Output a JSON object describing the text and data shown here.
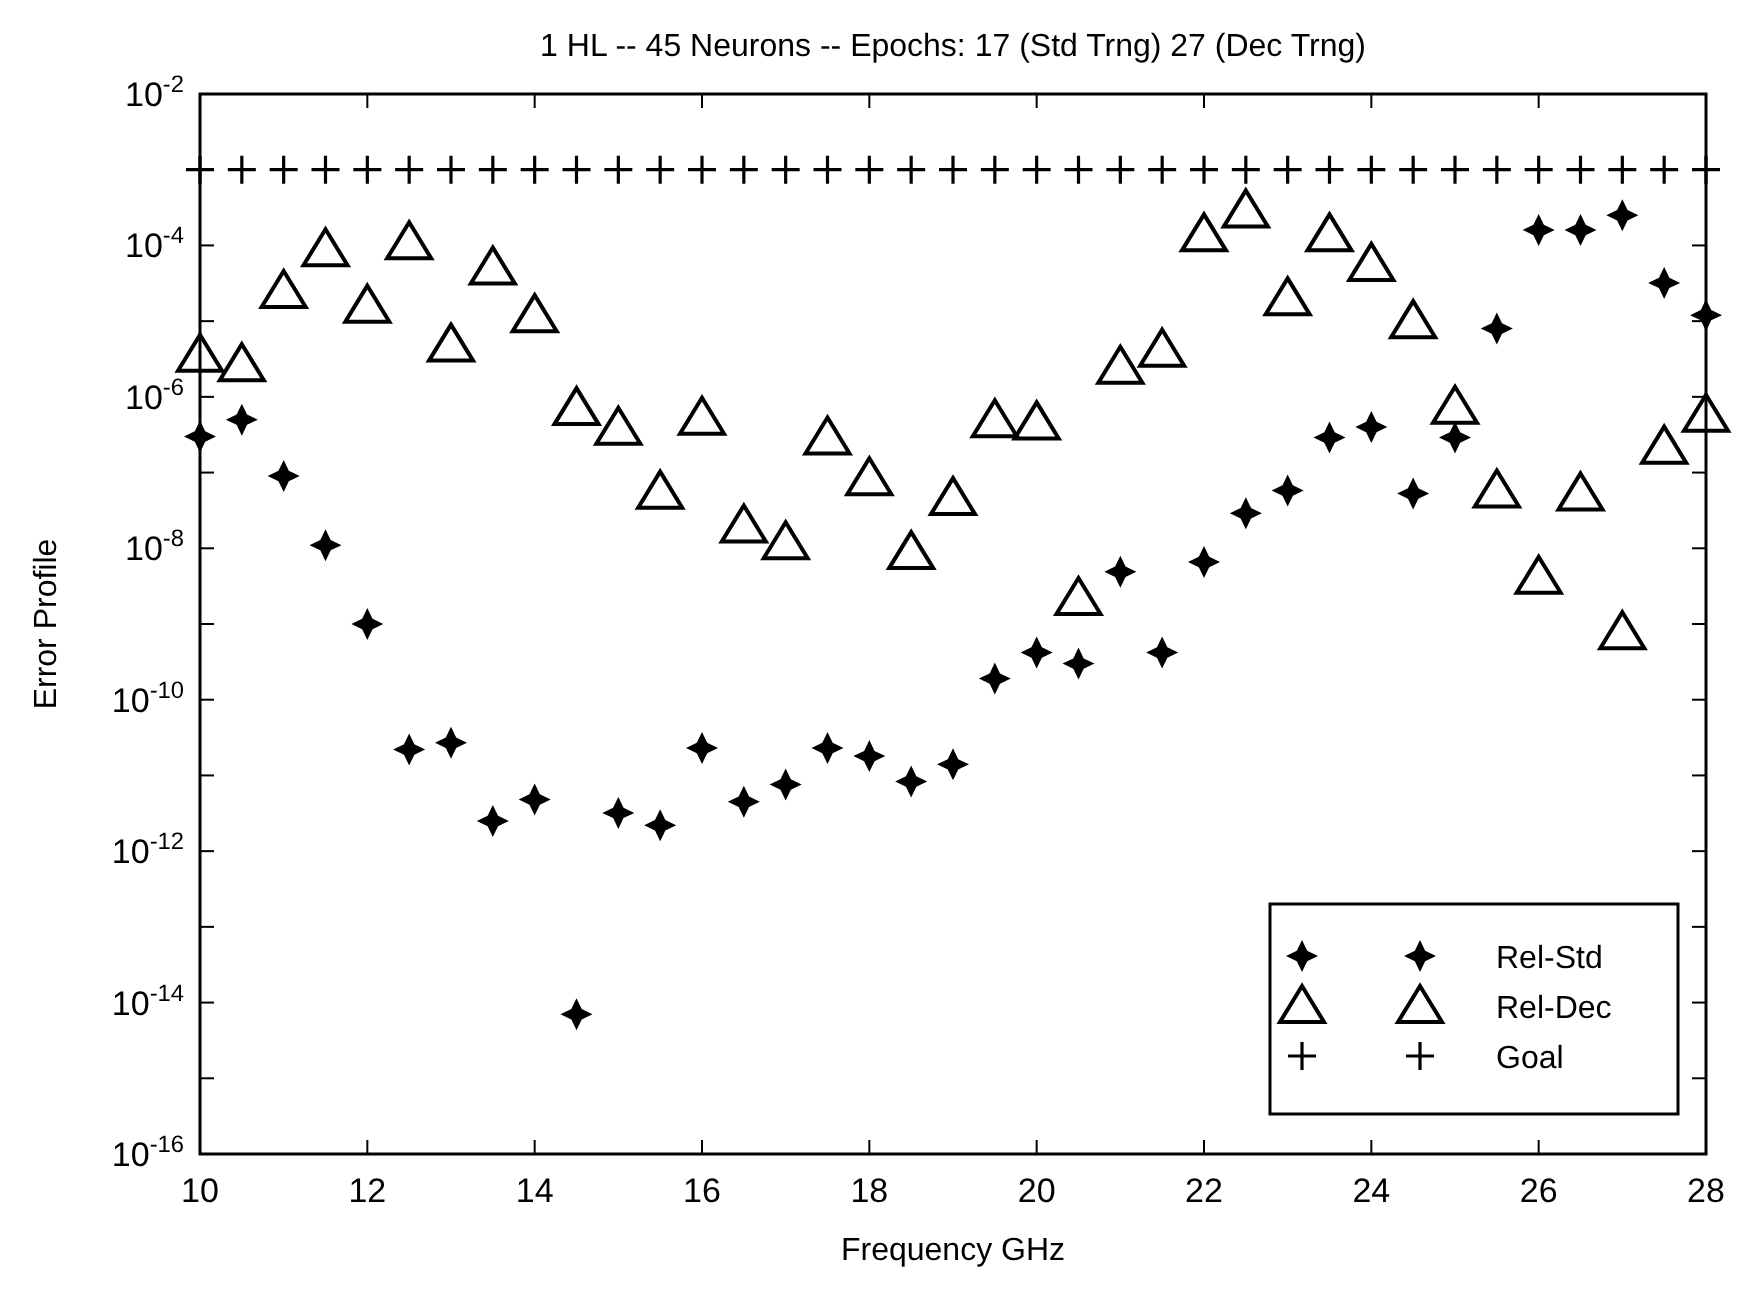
{
  "chart_data": {
    "type": "scatter",
    "title": "1 HL -- 45 Neurons -- Epochs: 17 (Std Trng)   27 (Dec Trng)",
    "xlabel": "Frequency GHz",
    "ylabel": "Error Profile",
    "x": [
      10,
      10.5,
      11,
      11.5,
      12,
      12.5,
      13,
      13.5,
      14,
      14.5,
      15,
      15.5,
      16,
      16.5,
      17,
      17.5,
      18,
      18.5,
      19,
      19.5,
      20,
      20.5,
      21,
      21.5,
      22,
      22.5,
      23,
      23.5,
      24,
      24.5,
      25,
      25.5,
      26,
      26.5,
      27,
      27.5,
      28
    ],
    "series": [
      {
        "name": "Rel-Std",
        "color": "#000000",
        "marker": "star",
        "values": [
          3e-07,
          5e-07,
          9e-08,
          1.1e-08,
          1e-09,
          2.2e-11,
          2.7e-11,
          2.5e-12,
          4.8e-12,
          7e-15,
          3.2e-12,
          2.2e-12,
          2.3e-11,
          4.5e-12,
          7.6e-12,
          2.3e-11,
          1.8e-11,
          8.3e-12,
          1.4e-11,
          1.9e-10,
          4.2e-10,
          3e-10,
          4.9e-09,
          4.2e-10,
          6.6e-09,
          2.9e-08,
          5.8e-08,
          2.9e-07,
          4e-07,
          5.3e-08,
          2.9e-07,
          8e-06,
          0.00016,
          0.00016,
          0.00025,
          3.2e-05,
          1.2e-05
        ]
      },
      {
        "name": "Rel-Dec",
        "color": "#000000",
        "marker": "triangle",
        "values": [
          3.6e-06,
          2.7e-06,
          2.5e-05,
          8.9e-05,
          1.6e-05,
          0.00011,
          4.9e-06,
          5.1e-05,
          1.2e-05,
          7.1e-07,
          3.9e-07,
          5.6e-08,
          5.3e-07,
          2e-08,
          1.2e-08,
          2.9e-07,
          8.4e-08,
          8.9e-09,
          4.6e-08,
          4.9e-07,
          4.6e-07,
          2.2e-09,
          2.5e-06,
          4.2e-06,
          0.00014,
          0.00029,
          2e-05,
          0.00014,
          5.7e-05,
          1e-05,
          7.4e-07,
          5.8e-08,
          4.2e-09,
          5.3e-08,
          7.8e-10,
          2.2e-07,
          5.8e-07
        ]
      },
      {
        "name": "Goal",
        "color": "#000000",
        "marker": "cross",
        "values": [
          0.001,
          0.001,
          0.001,
          0.001,
          0.001,
          0.001,
          0.001,
          0.001,
          0.001,
          0.001,
          0.001,
          0.001,
          0.001,
          0.001,
          0.001,
          0.001,
          0.001,
          0.001,
          0.001,
          0.001,
          0.001,
          0.001,
          0.001,
          0.001,
          0.001,
          0.001,
          0.001,
          0.001,
          0.001,
          0.001,
          0.001,
          0.001,
          0.001,
          0.001,
          0.001,
          0.001,
          0.001
        ]
      }
    ],
    "log": "y",
    "grid": false,
    "legend": "bottom right",
    "xlim": [
      10,
      28
    ],
    "xticks": [
      10,
      12,
      14,
      16,
      18,
      20,
      22,
      24,
      26,
      28
    ],
    "ylim": [
      1e-16,
      0.01
    ],
    "yticks": [
      {
        "value": 0.01,
        "label": "10$^{-2}$"
      },
      {
        "value": 0.001,
        "label": null
      },
      {
        "value": 0.0001,
        "label": "10$^{-4}$"
      },
      {
        "value": 1e-05,
        "label": null
      },
      {
        "value": 1e-06,
        "label": "10$^{-6}$"
      },
      {
        "value": 1e-07,
        "label": null
      },
      {
        "value": 1e-08,
        "label": "10$^{-8}$"
      },
      {
        "value": 1e-09,
        "label": null
      },
      {
        "value": 1e-10,
        "label": "10$^{-10}$"
      },
      {
        "value": 1e-11,
        "label": null
      },
      {
        "value": 1e-12,
        "label": "10$^{-12}$"
      },
      {
        "value": 1e-13,
        "label": null
      },
      {
        "value": 1e-14,
        "label": "10$^{-14}$"
      },
      {
        "value": 1e-15,
        "label": null
      },
      {
        "value": 1e-16,
        "label": "10$^{-16}$"
      }
    ]
  }
}
